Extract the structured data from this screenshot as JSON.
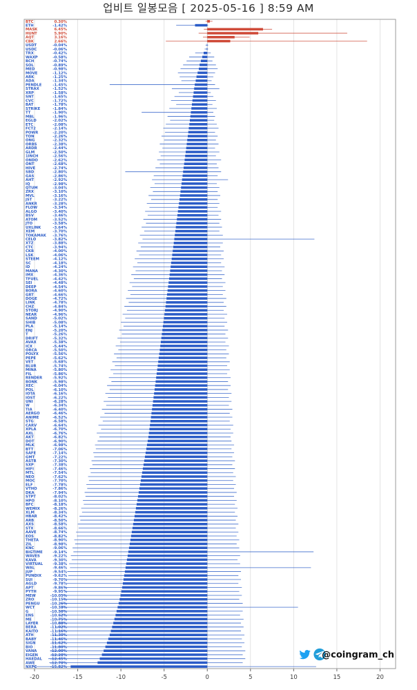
{
  "title": "업비트 일봉모음 [ 2025-05-16 ]  8:59 AM",
  "watermark": {
    "handle": "@coingram_ch",
    "icons": [
      "twitter-icon",
      "telegram-icon"
    ]
  },
  "colors": {
    "positive": "#cf4a38",
    "negative": "#2a5bc7",
    "grid": "#dcdcdc",
    "zero_line": "#c4c4c4",
    "border": "#9a9a9a",
    "tick_text": "#3c3c3c",
    "title_text": "#2b2b2b",
    "twitter_blue": "#1da1f2",
    "telegram_blue": "#229ED9",
    "handle_text": "#111111",
    "background": "#ffffff"
  },
  "chart_data": {
    "type": "bar",
    "orientation": "horizontal",
    "title": "업비트 일봉모음 [ 2025-05-16 ]  8:59 AM",
    "xlabel": "",
    "ylabel": "",
    "unit": "%",
    "xlim": [
      -21.2,
      21.8
    ],
    "x_ticks": [
      -20,
      -15,
      -10,
      -5,
      0,
      5,
      10,
      15,
      20
    ],
    "grid": true,
    "legend": "none",
    "rows_format": [
      "ticker",
      "change_pct",
      "day_low_pct",
      "day_high_pct"
    ],
    "rows": [
      [
        "BTC",
        0.3,
        -0.2,
        0.6
      ],
      [
        "ETH",
        -1.42,
        -3.6,
        0.1
      ],
      [
        "MASK",
        6.45,
        -0.4,
        7.5
      ],
      [
        "HUNT",
        5.9,
        -1.0,
        16.2
      ],
      [
        "AQT",
        3.16,
        -0.5,
        4.9
      ],
      [
        "CBK",
        2.66,
        -4.8,
        18.5
      ],
      [
        "USDT",
        -0.04,
        -0.2,
        0.1
      ],
      [
        "USDC",
        -0.06,
        -0.3,
        0.1
      ],
      [
        "TRX",
        -0.42,
        -1.4,
        0.4
      ],
      [
        "WAXP",
        -0.58,
        -2.1,
        0.8
      ],
      [
        "BCH",
        -0.74,
        -2.4,
        0.6
      ],
      [
        "SOL",
        -0.89,
        -2.8,
        1.0
      ],
      [
        "MED",
        -0.98,
        -3.1,
        1.2
      ],
      [
        "MOVE",
        -1.12,
        -3.4,
        0.9
      ],
      [
        "ARK",
        -1.25,
        -3.2,
        0.7
      ],
      [
        "ADA",
        -1.34,
        -3.0,
        0.5
      ],
      [
        "PENDLE",
        -1.45,
        -11.3,
        0.9
      ],
      [
        "STRAX",
        -1.52,
        -4.1,
        1.4
      ],
      [
        "XRP",
        -1.58,
        -3.3,
        0.4
      ],
      [
        "SNT",
        -1.65,
        -3.8,
        0.7
      ],
      [
        "CVC",
        -1.72,
        -4.2,
        1.0
      ],
      [
        "BAT",
        -1.78,
        -3.6,
        0.6
      ],
      [
        "STRIKE",
        -1.84,
        -4.4,
        1.1
      ],
      [
        "TT",
        -1.9,
        -7.6,
        0.7
      ],
      [
        "MBL",
        -1.96,
        -4.6,
        0.9
      ],
      [
        "EGLD",
        -2.02,
        -4.3,
        0.8
      ],
      [
        "ETC",
        -2.08,
        -4.8,
        1.1
      ],
      [
        "FCT2",
        -2.14,
        -5.1,
        1.3
      ],
      [
        "POWR",
        -2.2,
        -4.9,
        0.9
      ],
      [
        "TON",
        -2.26,
        -5.3,
        1.2
      ],
      [
        "ONG",
        -2.32,
        -5.0,
        1.0
      ],
      [
        "ORBS",
        -2.38,
        -5.5,
        1.3
      ],
      [
        "ARDR",
        -2.44,
        -5.2,
        0.9
      ],
      [
        "GLM",
        -2.5,
        -5.6,
        1.4
      ],
      [
        "1INCH",
        -2.56,
        -5.4,
        1.0
      ],
      [
        "ONDO",
        -2.62,
        -5.8,
        1.6
      ],
      [
        "ONT",
        -2.68,
        -5.5,
        1.1
      ],
      [
        "HIVE",
        -2.74,
        -6.0,
        1.3
      ],
      [
        "SBD",
        -2.8,
        -9.5,
        1.6
      ],
      [
        "GAS",
        -2.86,
        -6.2,
        1.2
      ],
      [
        "AHT",
        -2.92,
        -6.4,
        2.4
      ],
      [
        "IQ",
        -2.98,
        -6.1,
        1.1
      ],
      [
        "QTUM",
        -3.04,
        -6.6,
        1.4
      ],
      [
        "ZRX",
        -3.1,
        -6.3,
        1.2
      ],
      [
        "MVL",
        -3.16,
        -6.8,
        1.5
      ],
      [
        "JST",
        -3.22,
        -6.5,
        1.2
      ],
      [
        "ANKR",
        -3.28,
        -7.0,
        1.4
      ],
      [
        "FLOW",
        -3.34,
        -6.7,
        1.2
      ],
      [
        "ALGO",
        -3.4,
        -7.2,
        1.6
      ],
      [
        "BSV",
        -3.46,
        -6.9,
        1.3
      ],
      [
        "ATOM",
        -3.52,
        -7.4,
        1.6
      ],
      [
        "JTO",
        -3.58,
        -7.1,
        1.4
      ],
      [
        "UXLINK",
        -3.64,
        -7.6,
        1.7
      ],
      [
        "XEM",
        -3.7,
        -7.3,
        1.4
      ],
      [
        "TOKAMAK",
        -3.76,
        -7.8,
        1.8
      ],
      [
        "CELO",
        -3.82,
        -7.5,
        12.4
      ],
      [
        "XTZ",
        -3.88,
        -8.0,
        1.8
      ],
      [
        "CTC",
        -3.94,
        -7.7,
        1.5
      ],
      [
        "CKB",
        -4.0,
        -8.2,
        1.9
      ],
      [
        "LSK",
        -4.06,
        -7.9,
        1.6
      ],
      [
        "STEEM",
        -4.12,
        -8.4,
        1.9
      ],
      [
        "SC",
        -4.18,
        -8.1,
        1.6
      ],
      [
        "ID",
        -4.24,
        -8.6,
        2.0
      ],
      [
        "MANA",
        -4.3,
        -8.3,
        1.7
      ],
      [
        "IMX",
        -4.36,
        -8.8,
        2.0
      ],
      [
        "TFUEL",
        -4.42,
        -8.5,
        1.7
      ],
      [
        "SEI",
        -4.48,
        -9.0,
        2.1
      ],
      [
        "DEEP",
        -4.54,
        -8.7,
        1.8
      ],
      [
        "BORA",
        -4.6,
        -9.2,
        2.1
      ],
      [
        "GRT",
        -4.66,
        -8.9,
        1.8
      ],
      [
        "DOGE",
        -4.72,
        -9.4,
        2.2
      ],
      [
        "LINK",
        -4.78,
        -9.1,
        1.9
      ],
      [
        "CHZ",
        -4.84,
        -9.6,
        2.2
      ],
      [
        "STORJ",
        -4.9,
        -9.3,
        1.9
      ],
      [
        "NEAR",
        -4.96,
        -9.8,
        2.3
      ],
      [
        "SAND",
        -5.02,
        -9.5,
        2.0
      ],
      [
        "SHIB",
        -5.08,
        -10.0,
        2.3
      ],
      [
        "PLA",
        -5.14,
        -9.7,
        2.0
      ],
      [
        "ENJ",
        -5.2,
        -10.2,
        2.4
      ],
      [
        "T",
        -5.26,
        -9.9,
        2.1
      ],
      [
        "DRIFT",
        -5.32,
        -10.4,
        2.4
      ],
      [
        "AVAX",
        -5.38,
        -10.1,
        2.1
      ],
      [
        "ICX",
        -5.44,
        -10.6,
        2.5
      ],
      [
        "ORCA",
        -5.5,
        -10.3,
        2.2
      ],
      [
        "POLYX",
        -5.56,
        -10.8,
        2.5
      ],
      [
        "PEPE",
        -5.62,
        -10.5,
        2.2
      ],
      [
        "VET",
        -5.68,
        -11.0,
        2.6
      ],
      [
        "BLUR",
        -5.74,
        -10.7,
        2.3
      ],
      [
        "MINA",
        -5.8,
        -11.2,
        2.6
      ],
      [
        "FIL",
        -5.86,
        -10.9,
        2.3
      ],
      [
        "RENDER",
        -5.92,
        -11.4,
        2.7
      ],
      [
        "BONK",
        -5.98,
        -11.1,
        2.4
      ],
      [
        "XEC",
        -6.04,
        -11.6,
        2.7
      ],
      [
        "POL",
        -6.1,
        -11.3,
        2.4
      ],
      [
        "IOTA",
        -6.16,
        -11.8,
        2.8
      ],
      [
        "IOST",
        -6.22,
        -11.5,
        2.5
      ],
      [
        "UNI",
        -6.28,
        -12.0,
        2.8
      ],
      [
        "W",
        -6.34,
        -11.7,
        2.5
      ],
      [
        "TIA",
        -6.4,
        -12.2,
        2.9
      ],
      [
        "AERGO",
        -6.46,
        -11.9,
        2.6
      ],
      [
        "ANIME",
        -6.52,
        -12.4,
        2.9
      ],
      [
        "STG",
        -6.58,
        -12.1,
        2.6
      ],
      [
        "CARV",
        -6.64,
        -12.6,
        3.0
      ],
      [
        "XPLA",
        -6.7,
        -12.3,
        2.7
      ],
      [
        "AXL",
        -6.76,
        -12.8,
        3.0
      ],
      [
        "AKT",
        -6.82,
        -12.5,
        2.7
      ],
      [
        "DOT",
        -6.9,
        -12.7,
        2.8
      ],
      [
        "MLK",
        -6.98,
        -13.0,
        3.1
      ],
      [
        "BTT",
        -7.06,
        -12.9,
        2.8
      ],
      [
        "SAFE",
        -7.14,
        -13.2,
        3.1
      ],
      [
        "GMT",
        -7.22,
        -13.1,
        2.9
      ],
      [
        "ASTR",
        -7.3,
        -13.4,
        3.2
      ],
      [
        "SXP",
        -7.38,
        -13.3,
        2.9
      ],
      [
        "HIFI",
        -7.46,
        -13.6,
        3.2
      ],
      [
        "MTL",
        -7.54,
        -13.5,
        3.0
      ],
      [
        "NEO",
        -7.62,
        -13.8,
        3.3
      ],
      [
        "MOC",
        -7.7,
        -13.7,
        3.0
      ],
      [
        "ELF",
        -7.78,
        -14.0,
        3.3
      ],
      [
        "VTHO",
        -7.86,
        -13.9,
        3.1
      ],
      [
        "DKA",
        -7.94,
        -14.2,
        3.4
      ],
      [
        "STPT",
        -8.02,
        -14.1,
        3.1
      ],
      [
        "HPO",
        -8.1,
        -14.4,
        3.4
      ],
      [
        "BFC",
        -8.18,
        -14.3,
        3.2
      ],
      [
        "WEMIX",
        -8.26,
        -14.6,
        3.5
      ],
      [
        "XLM",
        -8.34,
        -14.5,
        3.2
      ],
      [
        "HBAR",
        -8.42,
        -14.8,
        3.5
      ],
      [
        "ARB",
        -8.5,
        -14.7,
        3.3
      ],
      [
        "AXS",
        -8.58,
        -15.0,
        3.6
      ],
      [
        "STX",
        -8.66,
        -14.9,
        3.3
      ],
      [
        "AAVE",
        -8.74,
        -15.2,
        3.6
      ],
      [
        "EOS",
        -8.82,
        -15.1,
        3.4
      ],
      [
        "THETA",
        -8.9,
        -15.4,
        3.7
      ],
      [
        "ZIL",
        -8.98,
        -15.3,
        3.4
      ],
      [
        "KNC",
        -9.06,
        -15.6,
        3.7
      ],
      [
        "BIGTIME",
        -9.14,
        -15.5,
        12.3
      ],
      [
        "WAVES",
        -9.22,
        -15.8,
        3.8
      ],
      [
        "KAVA",
        -9.3,
        -15.7,
        3.5
      ],
      [
        "VIRTUAL",
        -9.38,
        -16.0,
        3.8
      ],
      [
        "WAL",
        -9.46,
        -15.9,
        12.0
      ],
      [
        "JUP",
        -9.54,
        -16.2,
        3.9
      ],
      [
        "PUNDIX",
        -9.62,
        -16.1,
        3.6
      ],
      [
        "SUI",
        -9.7,
        -16.4,
        3.9
      ],
      [
        "AGLD",
        -9.78,
        -16.3,
        3.6
      ],
      [
        "APT",
        -9.86,
        -16.6,
        4.0
      ],
      [
        "PYTH",
        -9.95,
        -16.5,
        3.7
      ],
      [
        "MEW",
        -10.05,
        -16.8,
        4.0
      ],
      [
        "ZRO",
        -10.15,
        -16.7,
        3.7
      ],
      [
        "PENGU",
        -10.26,
        -17.0,
        4.1
      ],
      [
        "WCT",
        -10.38,
        -16.9,
        10.5
      ],
      [
        "G",
        -10.5,
        -17.2,
        4.1
      ],
      [
        "ENS",
        -10.62,
        -17.1,
        3.8
      ],
      [
        "ME",
        -10.75,
        -17.4,
        4.2
      ],
      [
        "LAYER",
        -10.88,
        -17.3,
        3.9
      ],
      [
        "BERA",
        -11.02,
        -17.6,
        4.2
      ],
      [
        "KAITO",
        -11.16,
        -17.5,
        3.9
      ],
      [
        "ATH",
        -11.3,
        -17.8,
        4.3
      ],
      [
        "BABY",
        -11.46,
        -17.7,
        4.0
      ],
      [
        "SIGN",
        -11.62,
        -18.0,
        4.3
      ],
      [
        "BIO",
        -11.8,
        -17.9,
        4.0
      ],
      [
        "VANA",
        -12.0,
        -18.2,
        4.4
      ],
      [
        "EIGEN",
        -12.2,
        -18.1,
        4.1
      ],
      [
        "HAEDAL",
        -12.45,
        -18.4,
        4.4
      ],
      [
        "AWE",
        -12.7,
        -18.3,
        4.1
      ],
      [
        "NXPC",
        -15.82,
        -20.3,
        12.6
      ]
    ]
  }
}
